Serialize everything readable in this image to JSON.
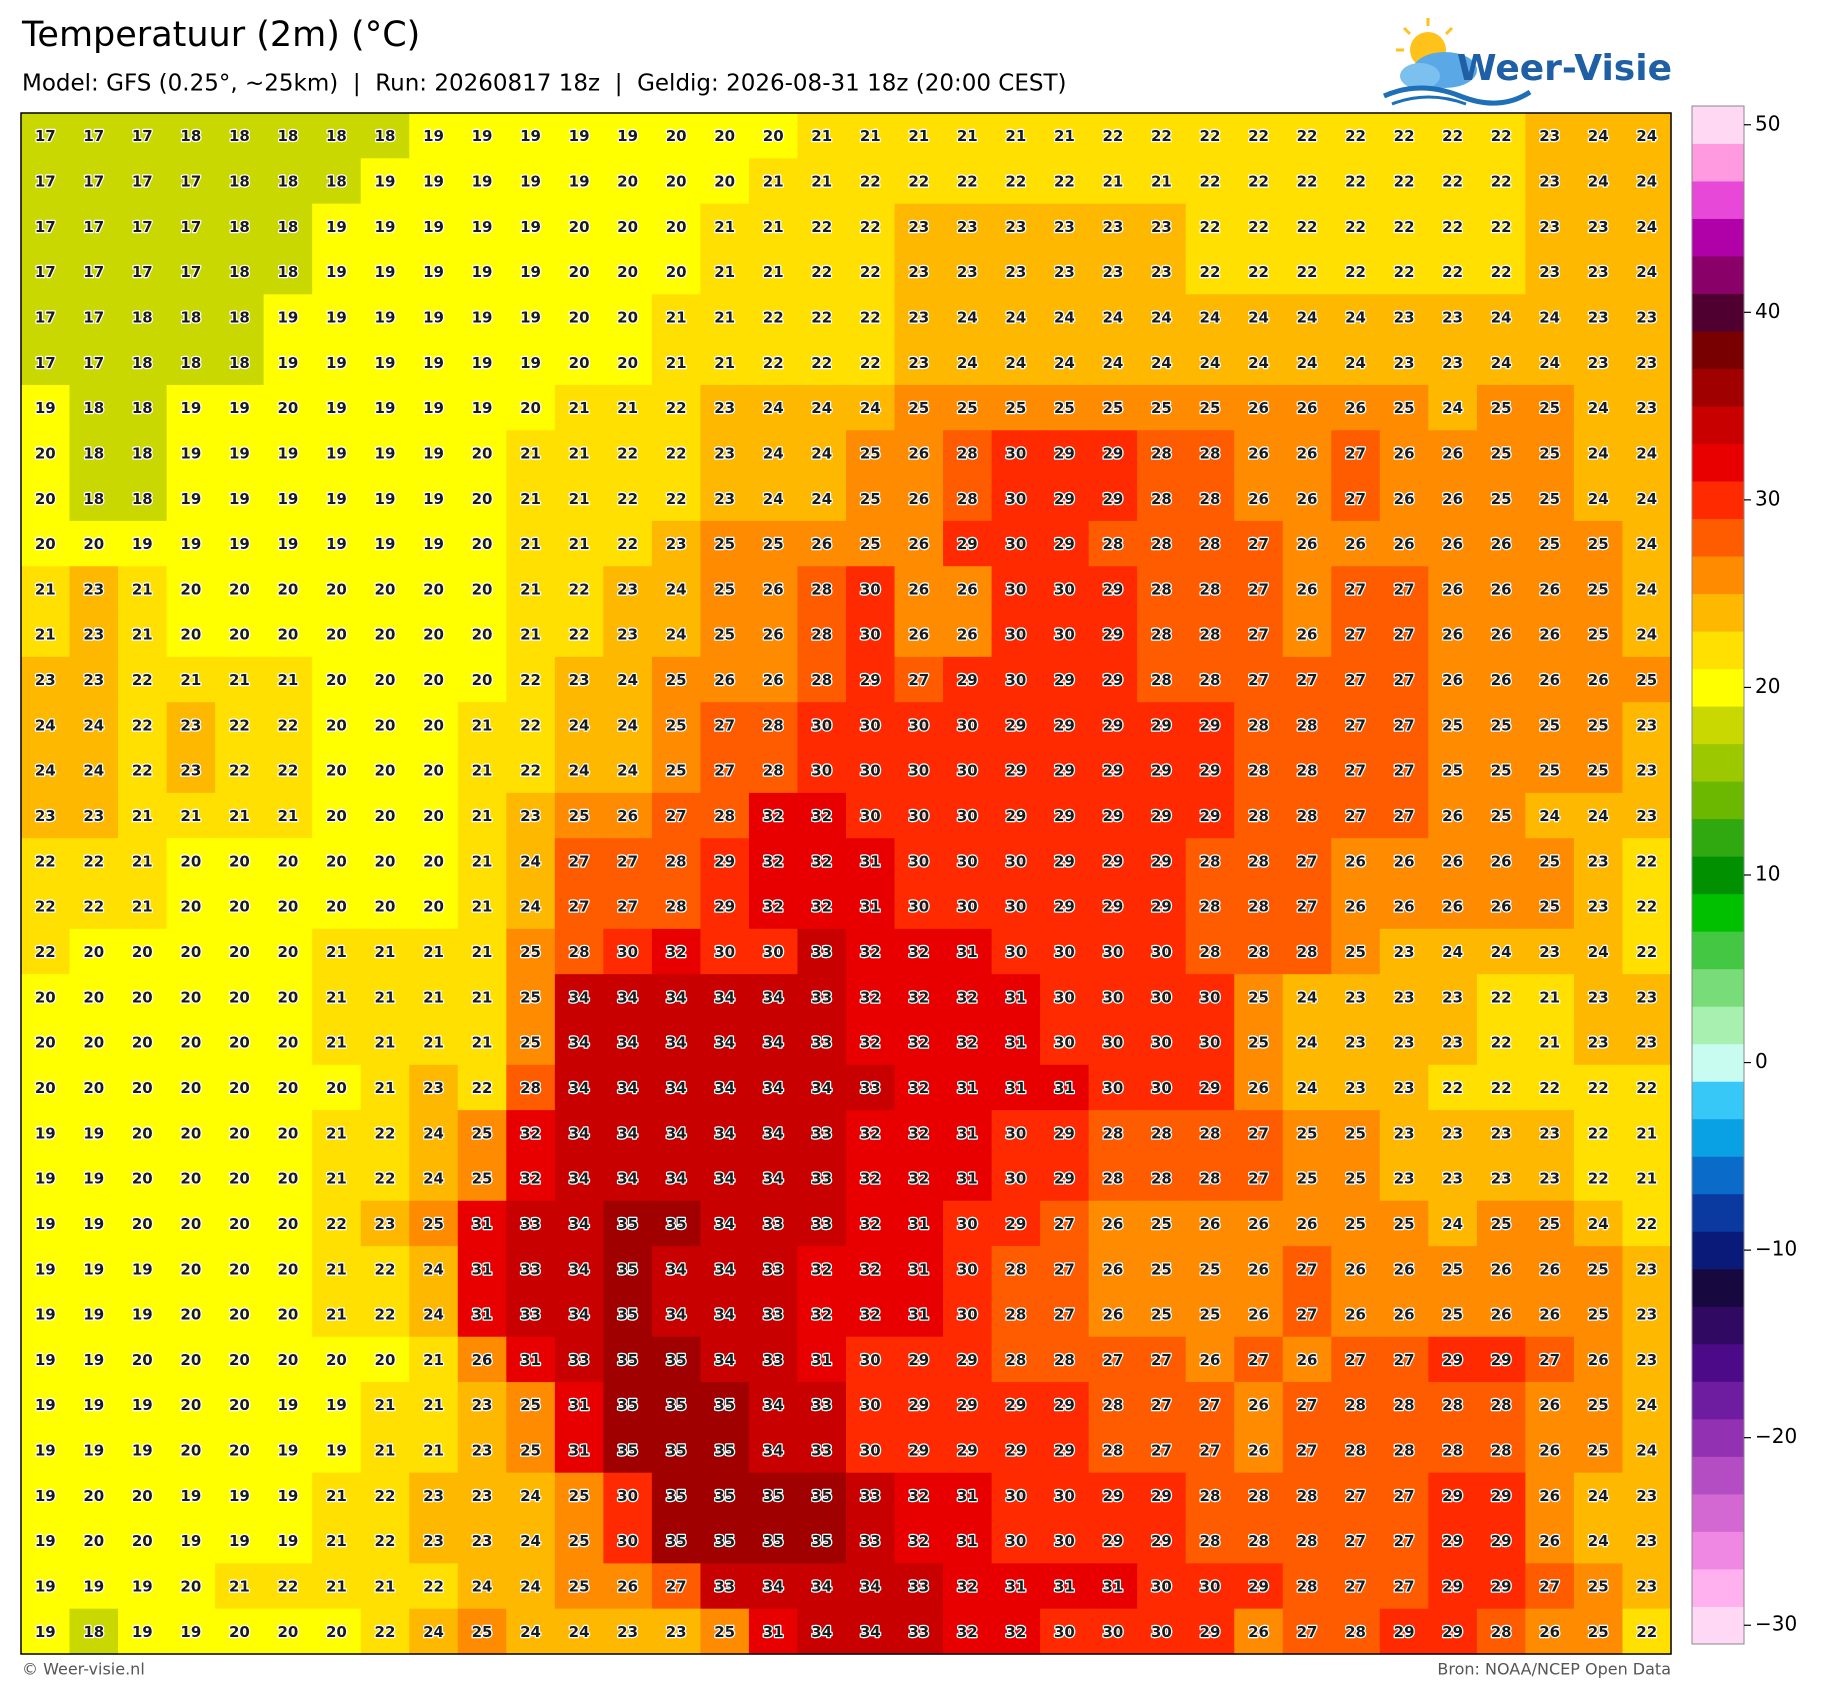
{
  "header": {
    "title": "Temperatuur (2m) (°C)",
    "subtitle": "Model: GFS (0.25°, ~25km)  |  Run: 20260817 18z  |  Geldig: 2026-08-31 18z (20:00 CEST)"
  },
  "logo": "Weer-Visie",
  "map": {
    "values": [
      [
        17,
        17,
        17,
        18,
        18,
        18,
        18,
        18,
        19,
        19,
        19,
        19,
        19,
        20,
        20,
        20,
        21,
        21,
        21,
        21,
        21,
        21,
        22,
        22,
        22,
        22,
        22,
        22,
        22,
        22,
        22,
        23,
        24,
        24
      ],
      [
        17,
        17,
        17,
        17,
        18,
        18,
        18,
        19,
        19,
        19,
        19,
        19,
        20,
        20,
        20,
        21,
        21,
        22,
        22,
        22,
        22,
        22,
        21,
        21,
        22,
        22,
        22,
        22,
        22,
        22,
        22,
        23,
        24,
        24
      ],
      [
        17,
        17,
        17,
        17,
        18,
        18,
        19,
        19,
        19,
        19,
        19,
        20,
        20,
        20,
        21,
        21,
        22,
        22,
        23,
        23,
        23,
        23,
        23,
        23,
        22,
        22,
        22,
        22,
        22,
        22,
        22,
        23,
        23,
        24
      ],
      [
        17,
        17,
        17,
        17,
        18,
        18,
        19,
        19,
        19,
        19,
        19,
        20,
        20,
        20,
        21,
        21,
        22,
        22,
        23,
        23,
        23,
        23,
        23,
        23,
        22,
        22,
        22,
        22,
        22,
        22,
        22,
        23,
        23,
        24
      ],
      [
        17,
        17,
        18,
        18,
        18,
        19,
        19,
        19,
        19,
        19,
        19,
        20,
        20,
        21,
        21,
        22,
        22,
        22,
        23,
        24,
        24,
        24,
        24,
        24,
        24,
        24,
        24,
        24,
        23,
        23,
        24,
        24,
        23,
        23
      ],
      [
        17,
        17,
        18,
        18,
        18,
        19,
        19,
        19,
        19,
        19,
        19,
        20,
        20,
        21,
        21,
        22,
        22,
        22,
        23,
        24,
        24,
        24,
        24,
        24,
        24,
        24,
        24,
        24,
        23,
        23,
        24,
        24,
        23,
        23
      ],
      [
        19,
        18,
        18,
        19,
        19,
        20,
        19,
        19,
        19,
        19,
        20,
        21,
        21,
        22,
        23,
        24,
        24,
        24,
        25,
        25,
        25,
        25,
        25,
        25,
        25,
        26,
        26,
        26,
        25,
        24,
        25,
        25,
        24,
        23
      ],
      [
        20,
        18,
        18,
        19,
        19,
        19,
        19,
        19,
        19,
        20,
        21,
        21,
        22,
        22,
        23,
        24,
        24,
        25,
        26,
        28,
        30,
        29,
        29,
        28,
        28,
        26,
        26,
        27,
        26,
        26,
        25,
        25,
        24,
        24
      ],
      [
        20,
        18,
        18,
        19,
        19,
        19,
        19,
        19,
        19,
        20,
        21,
        21,
        22,
        22,
        23,
        24,
        24,
        25,
        26,
        28,
        30,
        29,
        29,
        28,
        28,
        26,
        26,
        27,
        26,
        26,
        25,
        25,
        24,
        24
      ],
      [
        20,
        20,
        19,
        19,
        19,
        19,
        19,
        19,
        19,
        20,
        21,
        21,
        22,
        23,
        25,
        25,
        26,
        25,
        26,
        29,
        30,
        29,
        28,
        28,
        28,
        27,
        26,
        26,
        26,
        26,
        26,
        25,
        25,
        24
      ],
      [
        21,
        23,
        21,
        20,
        20,
        20,
        20,
        20,
        20,
        20,
        21,
        22,
        23,
        24,
        25,
        26,
        28,
        30,
        26,
        26,
        30,
        30,
        29,
        28,
        28,
        27,
        26,
        27,
        27,
        26,
        26,
        26,
        25,
        24
      ],
      [
        21,
        23,
        21,
        20,
        20,
        20,
        20,
        20,
        20,
        20,
        21,
        22,
        23,
        24,
        25,
        26,
        28,
        30,
        26,
        26,
        30,
        30,
        29,
        28,
        28,
        27,
        26,
        27,
        27,
        26,
        26,
        26,
        25,
        24
      ],
      [
        23,
        23,
        22,
        21,
        21,
        21,
        20,
        20,
        20,
        20,
        22,
        23,
        24,
        25,
        26,
        26,
        28,
        29,
        27,
        29,
        30,
        29,
        29,
        28,
        28,
        27,
        27,
        27,
        27,
        26,
        26,
        26,
        26,
        25
      ],
      [
        24,
        24,
        22,
        23,
        22,
        22,
        20,
        20,
        20,
        21,
        22,
        24,
        24,
        25,
        27,
        28,
        30,
        30,
        30,
        30,
        29,
        29,
        29,
        29,
        29,
        28,
        28,
        27,
        27,
        25,
        25,
        25,
        25,
        23
      ],
      [
        24,
        24,
        22,
        23,
        22,
        22,
        20,
        20,
        20,
        21,
        22,
        24,
        24,
        25,
        27,
        28,
        30,
        30,
        30,
        30,
        29,
        29,
        29,
        29,
        29,
        28,
        28,
        27,
        27,
        25,
        25,
        25,
        25,
        23
      ],
      [
        23,
        23,
        21,
        21,
        21,
        21,
        20,
        20,
        20,
        21,
        23,
        25,
        26,
        27,
        28,
        32,
        32,
        30,
        30,
        30,
        29,
        29,
        29,
        29,
        29,
        28,
        28,
        27,
        27,
        26,
        25,
        24,
        24,
        23
      ],
      [
        22,
        22,
        21,
        20,
        20,
        20,
        20,
        20,
        20,
        21,
        24,
        27,
        27,
        28,
        29,
        32,
        32,
        31,
        30,
        30,
        30,
        29,
        29,
        29,
        28,
        28,
        27,
        26,
        26,
        26,
        26,
        25,
        23,
        22
      ],
      [
        22,
        22,
        21,
        20,
        20,
        20,
        20,
        20,
        20,
        21,
        24,
        27,
        27,
        28,
        29,
        32,
        32,
        31,
        30,
        30,
        30,
        29,
        29,
        29,
        28,
        28,
        27,
        26,
        26,
        26,
        26,
        25,
        23,
        22
      ],
      [
        22,
        20,
        20,
        20,
        20,
        20,
        21,
        21,
        21,
        21,
        25,
        28,
        30,
        32,
        30,
        30,
        33,
        32,
        32,
        31,
        30,
        30,
        30,
        30,
        28,
        28,
        28,
        25,
        23,
        24,
        24,
        23,
        24,
        22
      ],
      [
        20,
        20,
        20,
        20,
        20,
        20,
        21,
        21,
        21,
        21,
        25,
        34,
        34,
        34,
        34,
        34,
        33,
        32,
        32,
        32,
        31,
        30,
        30,
        30,
        30,
        25,
        24,
        23,
        23,
        23,
        22,
        21,
        23,
        23
      ],
      [
        20,
        20,
        20,
        20,
        20,
        20,
        21,
        21,
        21,
        21,
        25,
        34,
        34,
        34,
        34,
        34,
        33,
        32,
        32,
        32,
        31,
        30,
        30,
        30,
        30,
        25,
        24,
        23,
        23,
        23,
        22,
        21,
        23,
        23
      ],
      [
        20,
        20,
        20,
        20,
        20,
        20,
        20,
        21,
        23,
        22,
        28,
        34,
        34,
        34,
        34,
        34,
        34,
        33,
        32,
        31,
        31,
        31,
        30,
        30,
        29,
        26,
        24,
        23,
        23,
        22,
        22,
        22,
        22,
        22
      ],
      [
        19,
        19,
        20,
        20,
        20,
        20,
        21,
        22,
        24,
        25,
        32,
        34,
        34,
        34,
        34,
        34,
        33,
        32,
        32,
        31,
        30,
        29,
        28,
        28,
        28,
        27,
        25,
        25,
        23,
        23,
        23,
        23,
        22,
        21
      ],
      [
        19,
        19,
        20,
        20,
        20,
        20,
        21,
        22,
        24,
        25,
        32,
        34,
        34,
        34,
        34,
        34,
        33,
        32,
        32,
        31,
        30,
        29,
        28,
        28,
        28,
        27,
        25,
        25,
        23,
        23,
        23,
        23,
        22,
        21
      ],
      [
        19,
        19,
        20,
        20,
        20,
        20,
        22,
        23,
        25,
        31,
        33,
        34,
        35,
        35,
        34,
        33,
        33,
        32,
        31,
        30,
        29,
        27,
        26,
        25,
        26,
        26,
        26,
        25,
        25,
        24,
        25,
        25,
        24,
        22
      ],
      [
        19,
        19,
        19,
        20,
        20,
        20,
        21,
        22,
        24,
        31,
        33,
        34,
        35,
        34,
        34,
        33,
        32,
        32,
        31,
        30,
        28,
        27,
        26,
        25,
        25,
        26,
        27,
        26,
        26,
        25,
        26,
        26,
        25,
        23
      ],
      [
        19,
        19,
        19,
        20,
        20,
        20,
        21,
        22,
        24,
        31,
        33,
        34,
        35,
        34,
        34,
        33,
        32,
        32,
        31,
        30,
        28,
        27,
        26,
        25,
        25,
        26,
        27,
        26,
        26,
        25,
        26,
        26,
        25,
        23
      ],
      [
        19,
        19,
        20,
        20,
        20,
        20,
        20,
        20,
        21,
        26,
        31,
        33,
        35,
        35,
        34,
        33,
        31,
        30,
        29,
        29,
        28,
        28,
        27,
        27,
        26,
        27,
        26,
        27,
        27,
        29,
        29,
        27,
        26,
        23
      ],
      [
        19,
        19,
        19,
        20,
        20,
        19,
        19,
        21,
        21,
        23,
        25,
        31,
        35,
        35,
        35,
        34,
        33,
        30,
        29,
        29,
        29,
        29,
        28,
        27,
        27,
        26,
        27,
        28,
        28,
        28,
        28,
        26,
        25,
        24
      ],
      [
        19,
        19,
        19,
        20,
        20,
        19,
        19,
        21,
        21,
        23,
        25,
        31,
        35,
        35,
        35,
        34,
        33,
        30,
        29,
        29,
        29,
        29,
        28,
        27,
        27,
        26,
        27,
        28,
        28,
        28,
        28,
        26,
        25,
        24
      ],
      [
        19,
        20,
        20,
        19,
        19,
        19,
        21,
        22,
        23,
        23,
        24,
        25,
        30,
        35,
        35,
        35,
        35,
        33,
        32,
        31,
        30,
        30,
        29,
        29,
        28,
        28,
        28,
        27,
        27,
        29,
        29,
        26,
        24,
        23
      ],
      [
        19,
        20,
        20,
        19,
        19,
        19,
        21,
        22,
        23,
        23,
        24,
        25,
        30,
        35,
        35,
        35,
        35,
        33,
        32,
        31,
        30,
        30,
        29,
        29,
        28,
        28,
        28,
        27,
        27,
        29,
        29,
        26,
        24,
        23
      ],
      [
        19,
        19,
        19,
        20,
        21,
        22,
        21,
        21,
        22,
        24,
        24,
        25,
        26,
        27,
        33,
        34,
        34,
        34,
        33,
        32,
        31,
        31,
        31,
        30,
        30,
        29,
        28,
        27,
        27,
        29,
        29,
        27,
        25,
        23
      ],
      [
        19,
        18,
        19,
        19,
        20,
        20,
        20,
        22,
        24,
        25,
        24,
        24,
        23,
        23,
        25,
        31,
        34,
        34,
        33,
        32,
        32,
        30,
        30,
        30,
        29,
        26,
        27,
        28,
        29,
        29,
        28,
        26,
        25,
        22
      ]
    ]
  },
  "colorbar": {
    "levels": [
      -31,
      -29,
      -27,
      -25,
      -23,
      -21,
      -19,
      -17,
      -15,
      -13,
      -11,
      -9,
      -7,
      -5,
      -3,
      -1,
      1,
      3,
      5,
      7,
      9,
      11,
      13,
      15,
      17,
      19,
      21,
      23,
      25,
      27,
      29,
      31,
      33,
      35,
      37,
      39,
      41,
      43,
      45,
      47,
      49,
      51
    ],
    "colors": [
      "#ffd8f6",
      "#ffb0ee",
      "#ee88e2",
      "#d468d2",
      "#b44cc4",
      "#9232b2",
      "#6e1ca0",
      "#4c0a88",
      "#300a62",
      "#180840",
      "#0a1a78",
      "#0a3aa0",
      "#0a6cc8",
      "#0aa0e4",
      "#38c8f8",
      "#c8fcf0",
      "#a8f0b0",
      "#78dc78",
      "#44c844",
      "#00c000",
      "#009000",
      "#30a810",
      "#6cb800",
      "#9cc800",
      "#c8d800",
      "#ffff00",
      "#ffe000",
      "#ffb800",
      "#ff8c00",
      "#ff5c00",
      "#ff2a00",
      "#e80000",
      "#c80000",
      "#a00000",
      "#780000",
      "#500030",
      "#880068",
      "#b000a8",
      "#e848d8",
      "#ff9ae0",
      "#ffd8f4"
    ],
    "ticks": [
      50,
      40,
      30,
      20,
      10,
      0,
      {
        "value": -10,
        "label": "−10"
      },
      {
        "value": -20,
        "label": "−20"
      },
      {
        "value": -30,
        "label": "−30"
      }
    ]
  },
  "footer": {
    "left": "© Weer-visie.nl",
    "right": "Bron: NOAA/NCEP Open Data"
  }
}
